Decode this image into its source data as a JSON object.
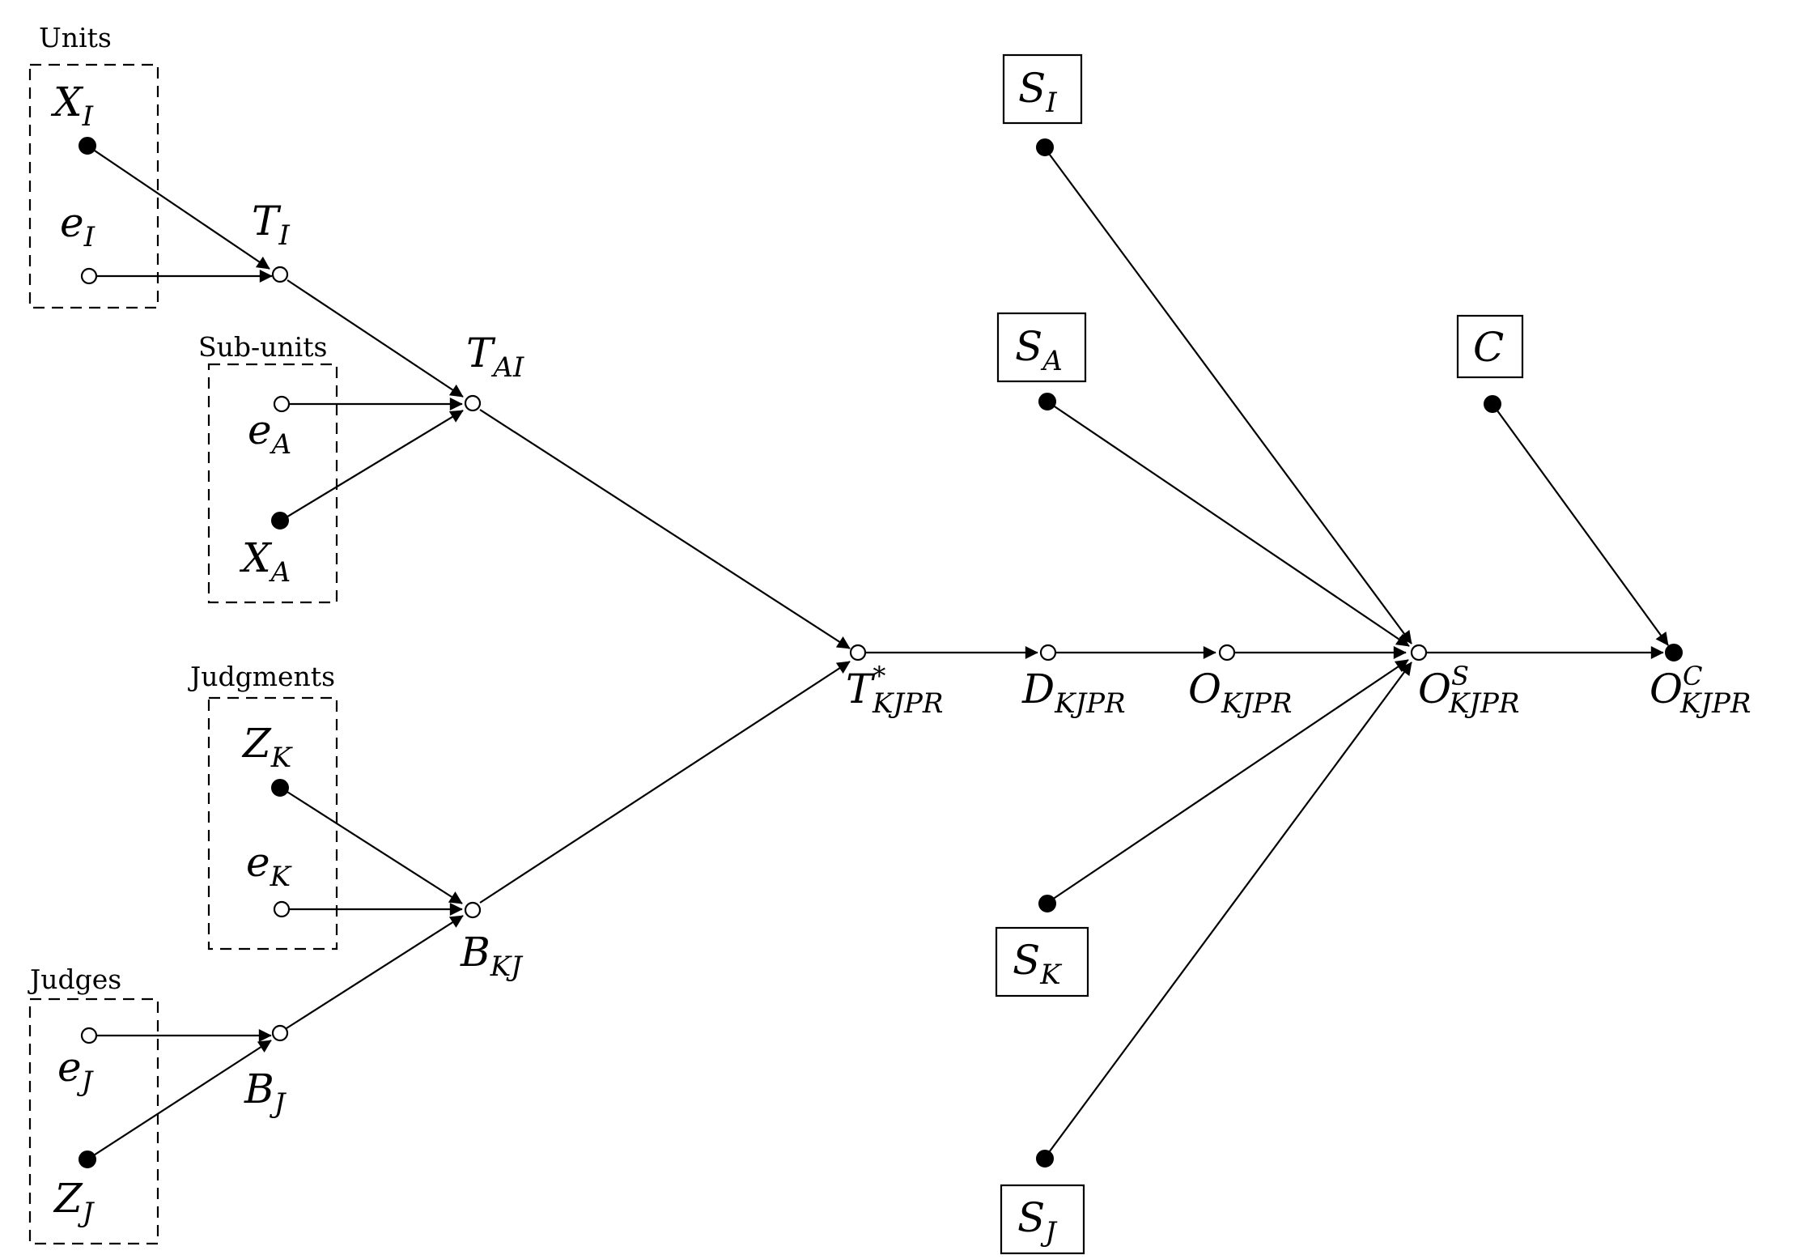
{
  "groups": {
    "units": "Units",
    "subunits": "Sub-units",
    "judgments": "Judgments",
    "judges": "Judges"
  },
  "labels": {
    "XI": {
      "base": "X",
      "sub": "I",
      "sup": ""
    },
    "eI": {
      "base": "e",
      "sub": "I",
      "sup": ""
    },
    "TI": {
      "base": "T",
      "sub": "I",
      "sup": ""
    },
    "TAI": {
      "base": "T",
      "sub": "AI",
      "sup": ""
    },
    "eA": {
      "base": "e",
      "sub": "A",
      "sup": ""
    },
    "XA": {
      "base": "X",
      "sub": "A",
      "sup": ""
    },
    "ZK": {
      "base": "Z",
      "sub": "K",
      "sup": ""
    },
    "eK": {
      "base": "e",
      "sub": "K",
      "sup": ""
    },
    "BKJ": {
      "base": "B",
      "sub": "KJ",
      "sup": ""
    },
    "eJ": {
      "base": "e",
      "sub": "J",
      "sup": ""
    },
    "BJ": {
      "base": "B",
      "sub": "J",
      "sup": ""
    },
    "ZJ": {
      "base": "Z",
      "sub": "J",
      "sup": ""
    },
    "Tstar": {
      "base": "T",
      "sub": "KJPR",
      "sup": "*"
    },
    "D": {
      "base": "D",
      "sub": "KJPR",
      "sup": ""
    },
    "O": {
      "base": "O",
      "sub": "KJPR",
      "sup": ""
    },
    "OS": {
      "base": "O",
      "sub": "KJPR",
      "sup": "S"
    },
    "OC": {
      "base": "O",
      "sub": "KJPR",
      "sup": "C"
    },
    "SI": {
      "base": "S",
      "sub": "I",
      "sup": ""
    },
    "SA": {
      "base": "S",
      "sub": "A",
      "sup": ""
    },
    "C": {
      "base": "C",
      "sub": "",
      "sup": ""
    },
    "SK": {
      "base": "S",
      "sub": "K",
      "sup": ""
    },
    "SJ": {
      "base": "S",
      "sub": "J",
      "sup": ""
    }
  },
  "node_kinds": {
    "observed": "filled",
    "latent": "open"
  },
  "colors": {
    "ink": "#000000",
    "background": "#ffffff"
  }
}
